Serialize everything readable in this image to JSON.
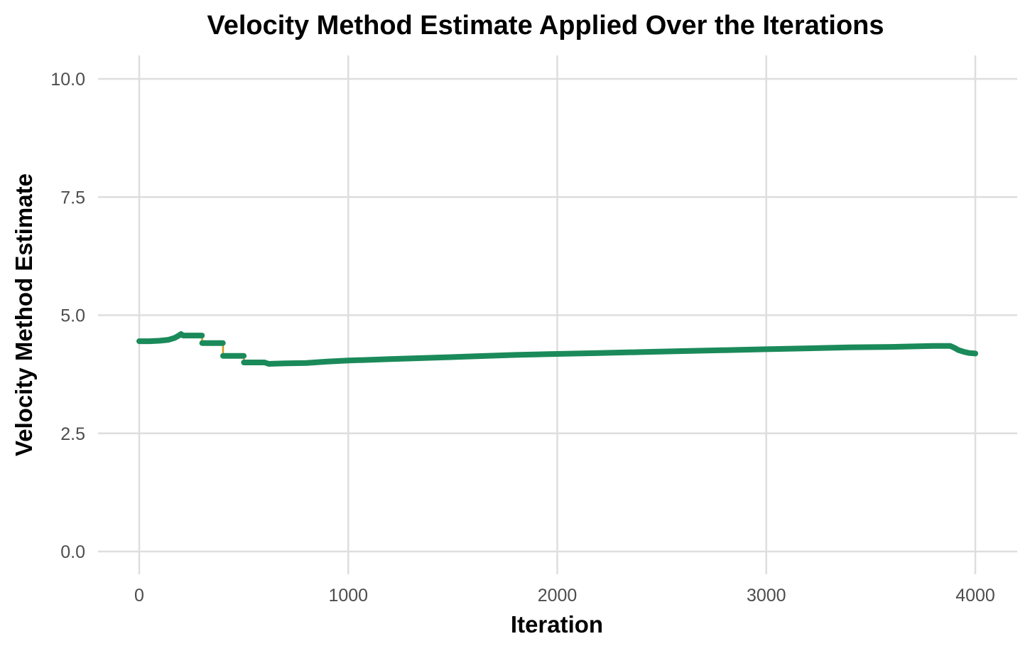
{
  "chart_data": {
    "type": "line",
    "title": "Velocity Method Estimate Applied Over the Iterations",
    "xlabel": "Iteration",
    "ylabel": "Velocity Method Estimate",
    "xlim": [
      0,
      4000
    ],
    "ylim": [
      0,
      10
    ],
    "x_ticks": [
      0,
      1000,
      2000,
      3000,
      4000
    ],
    "x_tick_labels": [
      "0",
      "1000",
      "2000",
      "3000",
      "4000"
    ],
    "y_ticks": [
      0,
      2.5,
      5,
      7.5,
      10
    ],
    "y_tick_labels": [
      "0.0",
      "2.5",
      "5.0",
      "7.5",
      "10.0"
    ],
    "grid": true,
    "legend": "none",
    "colors": {
      "line": "#1b8a5a",
      "connector": "#d49a1a",
      "grid": "#dedede"
    },
    "series": [
      {
        "color": "#1b8a5a",
        "x": [
          0,
          50,
          100,
          140,
          170,
          190,
          200,
          210,
          250,
          300,
          301,
          350,
          400,
          401,
          450,
          500,
          501,
          550,
          600,
          620,
          700,
          800,
          900,
          1000,
          1200,
          1400,
          1600,
          1800,
          2000,
          2200,
          2400,
          2600,
          2800,
          3000,
          3200,
          3400,
          3600,
          3800,
          3880,
          3900,
          3920,
          3950,
          3970,
          4000
        ],
        "y": [
          4.45,
          4.45,
          4.46,
          4.48,
          4.52,
          4.57,
          4.6,
          4.57,
          4.57,
          4.57,
          4.41,
          4.41,
          4.41,
          4.14,
          4.14,
          4.14,
          4.0,
          4.0,
          4.0,
          3.97,
          3.98,
          3.99,
          4.02,
          4.04,
          4.07,
          4.1,
          4.13,
          4.16,
          4.18,
          4.2,
          4.22,
          4.24,
          4.26,
          4.28,
          4.3,
          4.32,
          4.33,
          4.35,
          4.35,
          4.31,
          4.26,
          4.22,
          4.2,
          4.19
        ]
      }
    ]
  }
}
